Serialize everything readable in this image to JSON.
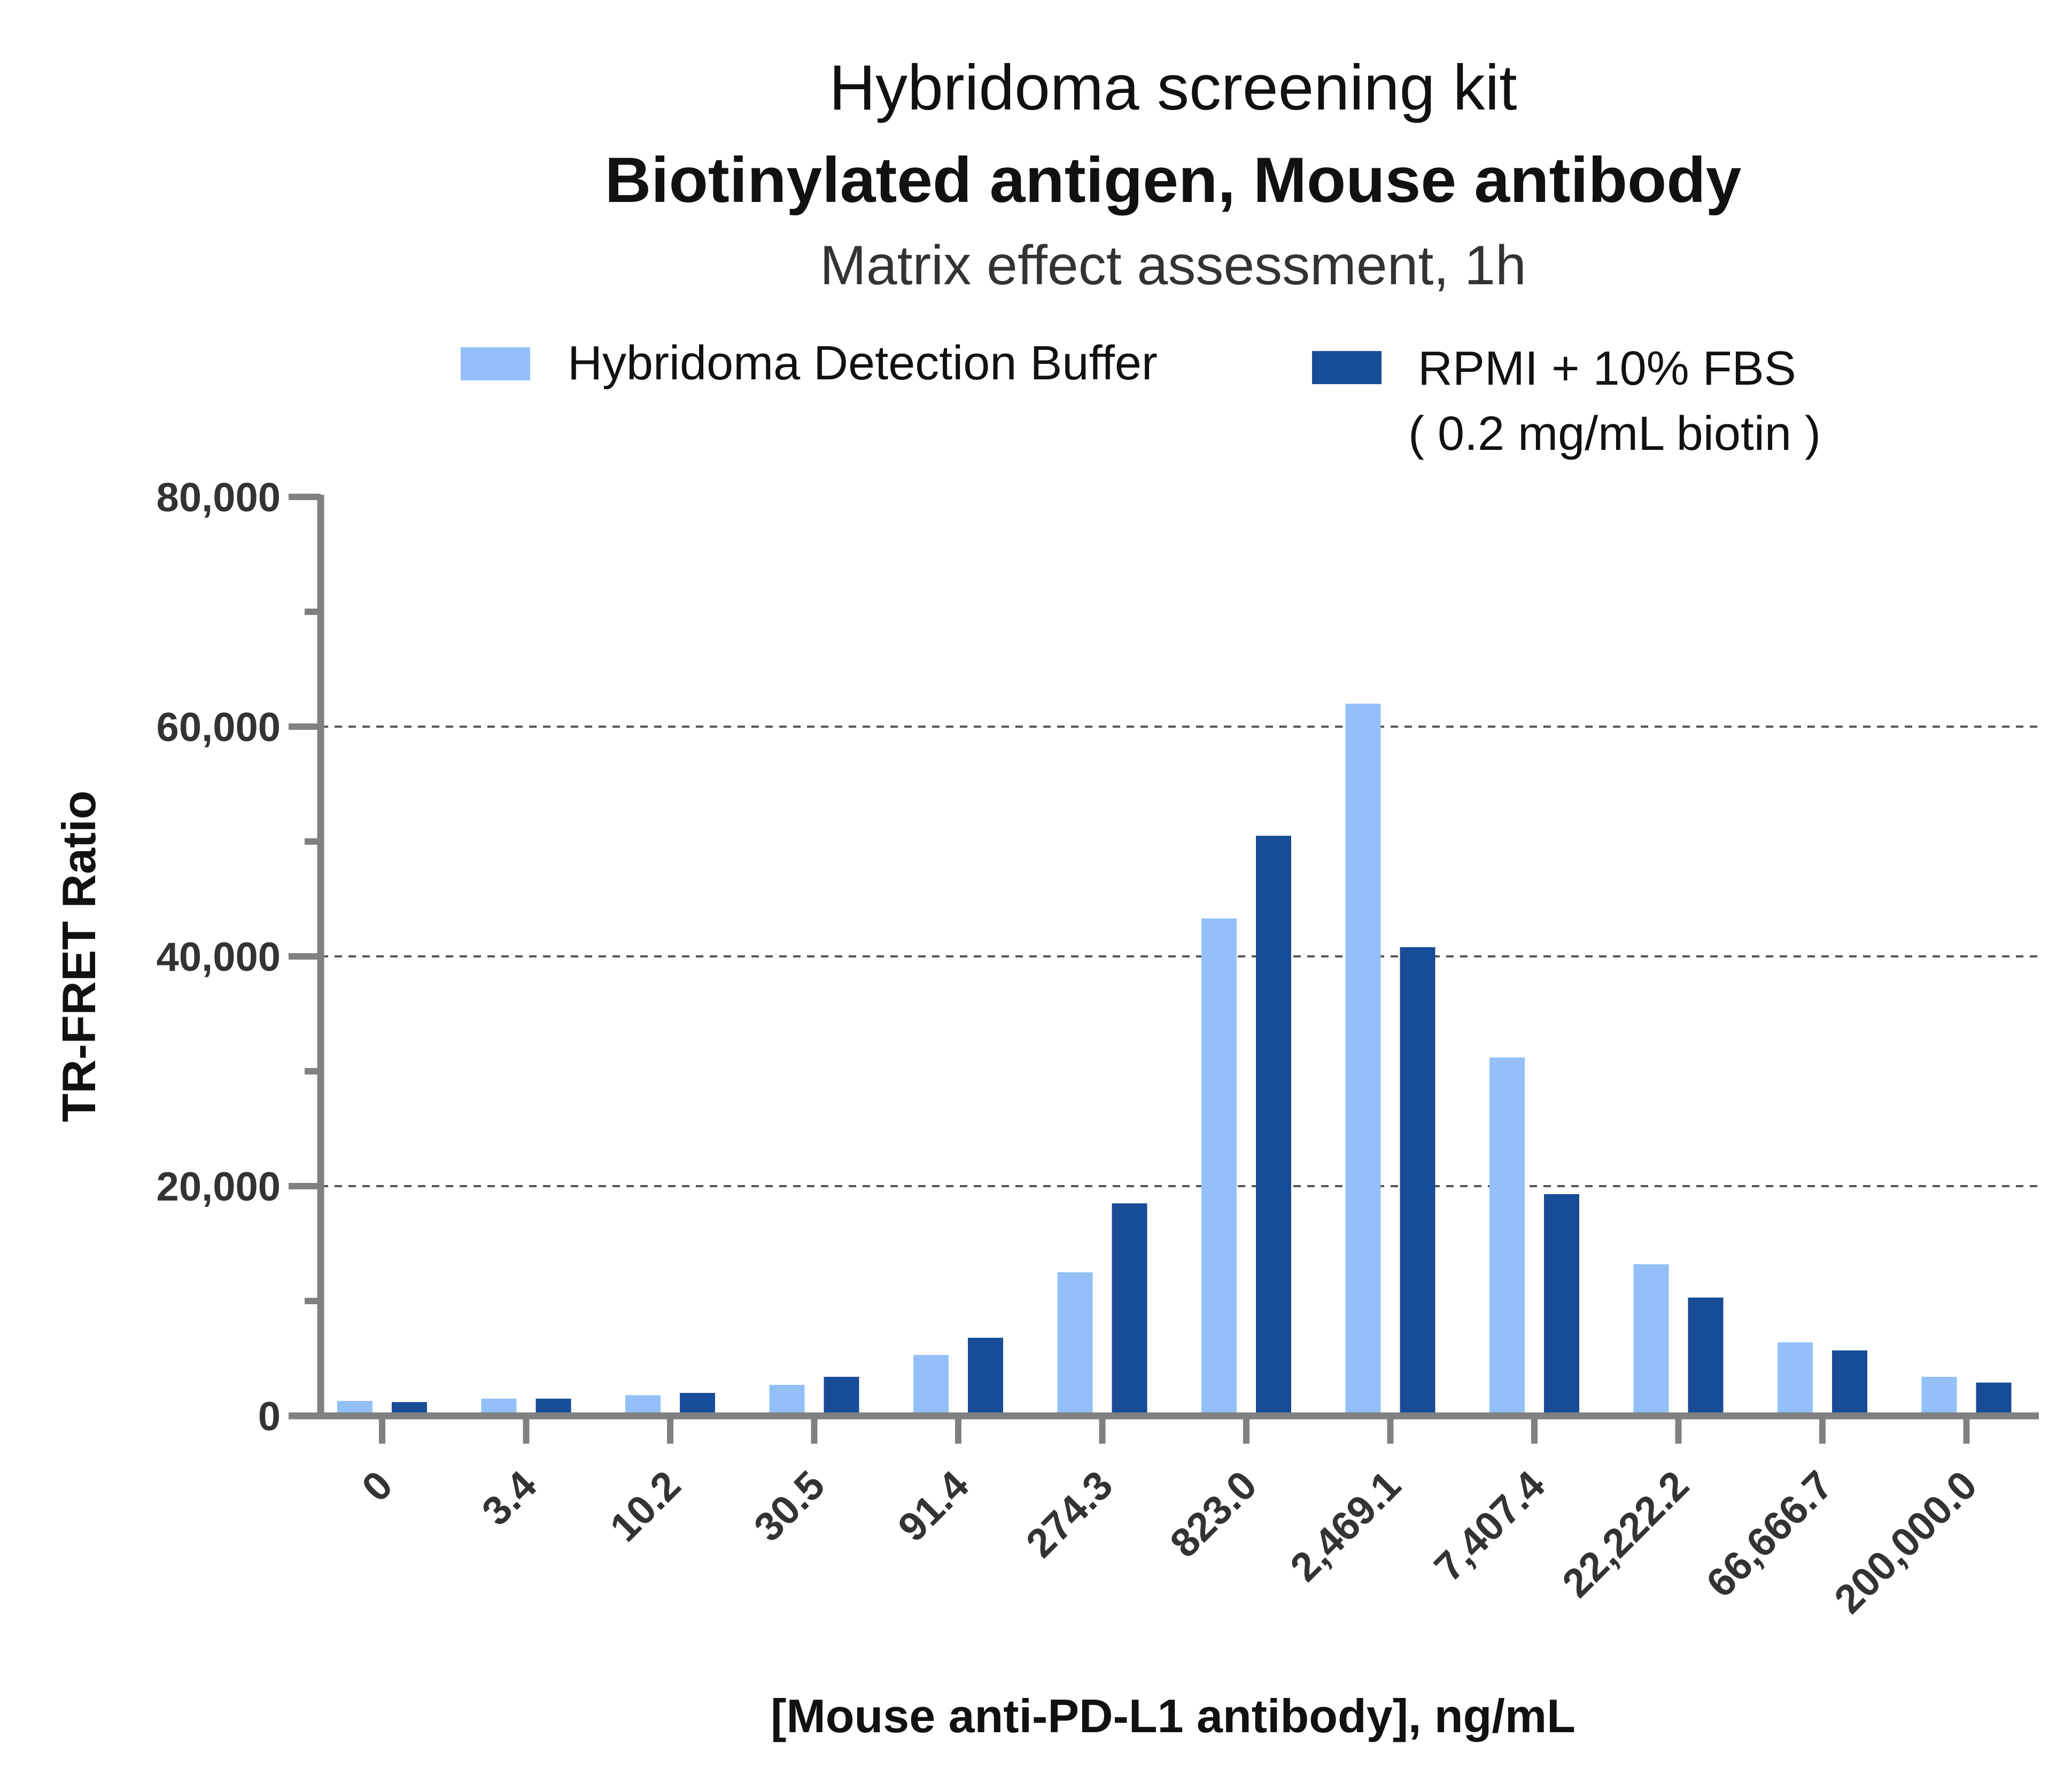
{
  "chart_data": {
    "type": "bar",
    "title": "Hybridoma screening kit",
    "subtitle": "Biotinylated antigen, Mouse antibody",
    "subtitle2": "Matrix effect assessment, 1h",
    "xlabel": "[Mouse anti-PD-L1 antibody], ng/mL",
    "ylabel": "TR-FRET Ratio",
    "ylim": [
      0,
      80000
    ],
    "yticks": [
      0,
      20000,
      40000,
      60000,
      80000
    ],
    "ytick_labels": [
      "0",
      "20,000",
      "40,000",
      "60,000",
      "80,000"
    ],
    "grid": "horizontal dashed at 20,000 / 40,000 / 60,000",
    "legend_position": "top",
    "categories": [
      "0",
      "3.4",
      "10.2",
      "30.5",
      "91.4",
      "274.3",
      "823.0",
      "2,469.1",
      "7,407.4",
      "22,222.2",
      "66,666.7",
      "200,000.0"
    ],
    "series": [
      {
        "name": "Hybridoma Detection Buffer",
        "color": "#93c0f8",
        "values": [
          1300,
          1500,
          1800,
          2700,
          5300,
          12500,
          43300,
          62000,
          31200,
          13200,
          6400,
          3400
        ]
      },
      {
        "name": "RPMI + 10% FBS",
        "name_line2": "( 0.2 mg/mL biotin )",
        "color": "#174c96",
        "values": [
          1200,
          1500,
          2000,
          3400,
          6800,
          18500,
          50500,
          40800,
          19300,
          10300,
          5700,
          2900
        ]
      }
    ]
  }
}
